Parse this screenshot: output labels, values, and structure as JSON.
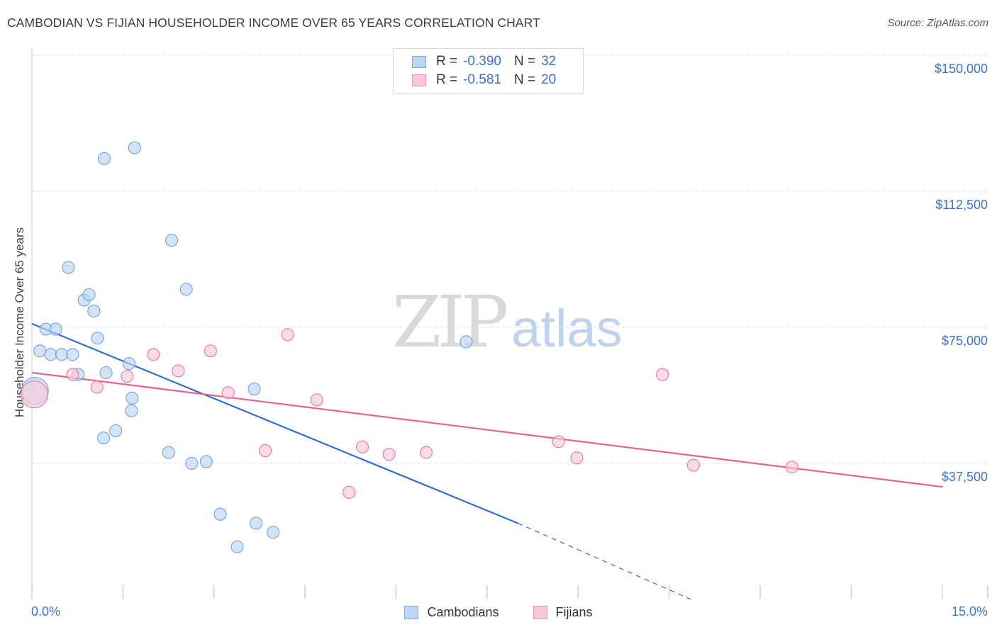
{
  "header": {
    "title": "CAMBODIAN VS FIJIAN HOUSEHOLDER INCOME OVER 65 YEARS CORRELATION CHART",
    "source": "Source: ZipAtlas.com"
  },
  "watermark": {
    "zip": "ZIP",
    "atlas": "atlas"
  },
  "legend_top": {
    "rows": [
      {
        "r_label": "R =",
        "r_value": "-0.390",
        "n_label": "N =",
        "n_value": "32",
        "color": "#bcd6f5"
      },
      {
        "r_label": "R =",
        "r_value": "-0.581",
        "n_label": "N =",
        "n_value": "20",
        "color": "#f9c7d6"
      }
    ]
  },
  "legend_bottom": {
    "items": [
      {
        "label": "Cambodians",
        "color": "#bcd6f5"
      },
      {
        "label": "Fijians",
        "color": "#f9c7d6"
      }
    ]
  },
  "chart_data": {
    "type": "scatter",
    "title": "CAMBODIAN VS FIJIAN HOUSEHOLDER INCOME OVER 65 YEARS CORRELATION CHART",
    "xlabel": "",
    "ylabel": "Householder Income Over 65 years",
    "xlim": [
      0,
      15
    ],
    "ylim": [
      0,
      155000
    ],
    "x_tick_labels": [
      "0.0%",
      "15.0%"
    ],
    "y_ticks": [
      37500,
      75000,
      112500,
      150000
    ],
    "y_tick_labels": [
      "$37,500",
      "$75,000",
      "$112,500",
      "$150,000"
    ],
    "grid": true,
    "series": [
      {
        "name": "Cambodians",
        "color": "#6fa1e0",
        "fill": "#bcd6f5",
        "trend": {
          "x0": 0.0,
          "y0": 76000,
          "x1": 8.0,
          "y1": 21000,
          "dash_to_x": 10.85,
          "dash_to_y": 0
        },
        "points": [
          {
            "x": 0.05,
            "y": 57500,
            "big": true
          },
          {
            "x": 0.13,
            "y": 68500
          },
          {
            "x": 0.23,
            "y": 74500
          },
          {
            "x": 0.31,
            "y": 67500
          },
          {
            "x": 0.39,
            "y": 74500
          },
          {
            "x": 0.49,
            "y": 67500
          },
          {
            "x": 0.67,
            "y": 67500
          },
          {
            "x": 0.76,
            "y": 62000
          },
          {
            "x": 0.86,
            "y": 82500
          },
          {
            "x": 0.94,
            "y": 84000
          },
          {
            "x": 0.6,
            "y": 91500
          },
          {
            "x": 1.02,
            "y": 79500
          },
          {
            "x": 1.08,
            "y": 72000
          },
          {
            "x": 1.22,
            "y": 62500
          },
          {
            "x": 1.18,
            "y": 44500
          },
          {
            "x": 1.38,
            "y": 46500
          },
          {
            "x": 1.6,
            "y": 65000
          },
          {
            "x": 1.65,
            "y": 55500
          },
          {
            "x": 1.64,
            "y": 52000
          },
          {
            "x": 2.25,
            "y": 40500
          },
          {
            "x": 2.63,
            "y": 37500
          },
          {
            "x": 2.87,
            "y": 38000
          },
          {
            "x": 3.1,
            "y": 23500
          },
          {
            "x": 3.38,
            "y": 14500
          },
          {
            "x": 3.69,
            "y": 21000
          },
          {
            "x": 3.97,
            "y": 18500
          },
          {
            "x": 3.66,
            "y": 58000
          },
          {
            "x": 2.54,
            "y": 85500
          },
          {
            "x": 2.3,
            "y": 99000
          },
          {
            "x": 1.19,
            "y": 121500
          },
          {
            "x": 1.69,
            "y": 124500
          },
          {
            "x": 7.15,
            "y": 71000
          }
        ]
      },
      {
        "name": "Fijians",
        "color": "#e9779d",
        "fill": "#f9c7d6",
        "trend": {
          "x0": 0.0,
          "y0": 62500,
          "x1": 15.0,
          "y1": 31000
        },
        "points": [
          {
            "x": 0.04,
            "y": 56500,
            "big": true
          },
          {
            "x": 0.67,
            "y": 62000
          },
          {
            "x": 1.07,
            "y": 58500
          },
          {
            "x": 1.57,
            "y": 61500
          },
          {
            "x": 2.0,
            "y": 67500
          },
          {
            "x": 2.41,
            "y": 63000
          },
          {
            "x": 2.94,
            "y": 68500
          },
          {
            "x": 3.23,
            "y": 57000
          },
          {
            "x": 3.84,
            "y": 41000
          },
          {
            "x": 4.21,
            "y": 73000
          },
          {
            "x": 4.69,
            "y": 55000
          },
          {
            "x": 5.22,
            "y": 29500
          },
          {
            "x": 5.44,
            "y": 42000
          },
          {
            "x": 5.88,
            "y": 40000
          },
          {
            "x": 6.49,
            "y": 40500
          },
          {
            "x": 8.67,
            "y": 43500
          },
          {
            "x": 8.97,
            "y": 39000
          },
          {
            "x": 10.38,
            "y": 62000
          },
          {
            "x": 10.89,
            "y": 37000
          },
          {
            "x": 12.51,
            "y": 36500
          }
        ]
      }
    ]
  }
}
